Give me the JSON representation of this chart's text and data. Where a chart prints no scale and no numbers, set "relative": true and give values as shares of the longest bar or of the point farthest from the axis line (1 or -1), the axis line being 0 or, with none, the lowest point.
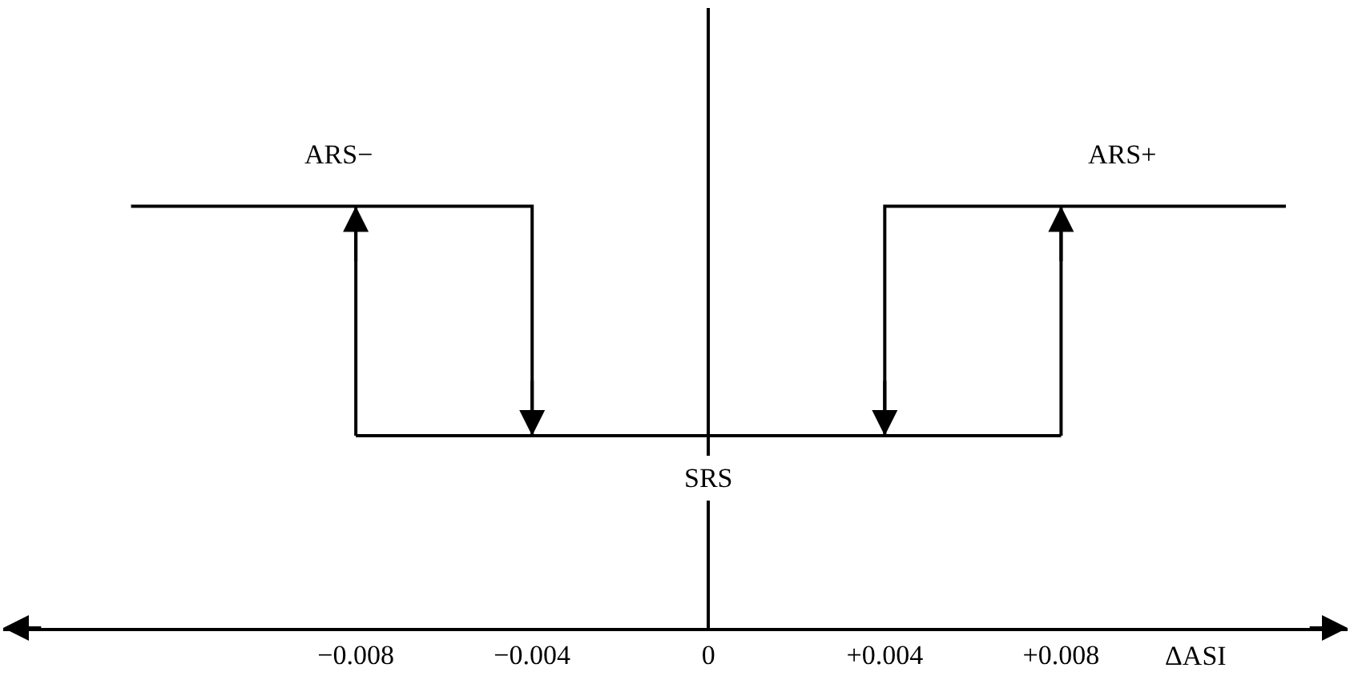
{
  "chart_data": {
    "type": "line",
    "relative": true,
    "xlabel": "ΔASI",
    "xlim": [
      -0.016,
      0.0145
    ],
    "xticks": [
      {
        "value": -0.008,
        "label": "−0.008"
      },
      {
        "value": -0.004,
        "label": "−0.004"
      },
      0,
      {
        "value": 0.004,
        "label": "+0.004"
      },
      {
        "value": 0.008,
        "label": "+0.008"
      }
    ],
    "tick_labels": "x",
    "marker": "none",
    "line_style": "solid",
    "series": [
      {
        "color": "#000000",
        "x": [
          -0.0131,
          -0.004,
          -0.004,
          null,
          -0.008,
          -0.008,
          null,
          -0.008,
          0.008,
          null,
          0.008,
          0.008,
          null,
          0.0131,
          0.004,
          0.004
        ],
        "values": [
          1,
          1,
          0.456,
          null,
          0.456,
          1,
          null,
          0.456,
          0.456,
          null,
          0.456,
          1,
          null,
          1,
          1,
          0.456
        ]
      }
    ],
    "annotations": [
      {
        "text": "ARS−",
        "x": -0.0084,
        "y": 1
      },
      {
        "text": "ARS+",
        "x": 0.0094,
        "y": 1
      },
      {
        "text": "SRS",
        "x": 0,
        "y": 0.456
      }
    ]
  }
}
